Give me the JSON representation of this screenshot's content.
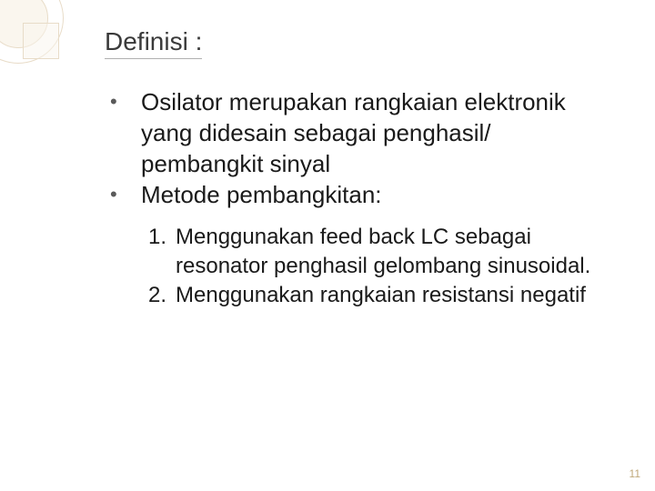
{
  "decoration": {
    "ring_border_color": "#e8dcc8",
    "ring_fill_color": "#faf6ee",
    "square_border_color": "#e8dcc8"
  },
  "title": {
    "text": "Definisi :",
    "fontsize": 28,
    "color": "#3a3a3a",
    "underline_color": "#b0b0b0"
  },
  "bullets": [
    {
      "marker": "•",
      "text": "Osilator merupakan rangkaian elektronik yang didesain sebagai penghasil/ pembangkit sinyal"
    },
    {
      "marker": "•",
      "text": "Metode pembangkitan:"
    }
  ],
  "numbered": [
    {
      "marker": "1.",
      "text": "Menggunakan feed back LC sebagai resonator penghasil gelombang sinusoidal."
    },
    {
      "marker": "2.",
      "text": "Menggunakan rangkaian resistansi negatif"
    }
  ],
  "body_style": {
    "bullet_fontsize": 26,
    "bullet_color": "#1a1a1a",
    "bullet_marker_color": "#5a5a5a",
    "numbered_fontsize": 24,
    "numbered_color": "#1a1a1a"
  },
  "page_number": {
    "text": "11",
    "fontsize": 12,
    "color": "#bfa87a"
  },
  "background_color": "#ffffff"
}
